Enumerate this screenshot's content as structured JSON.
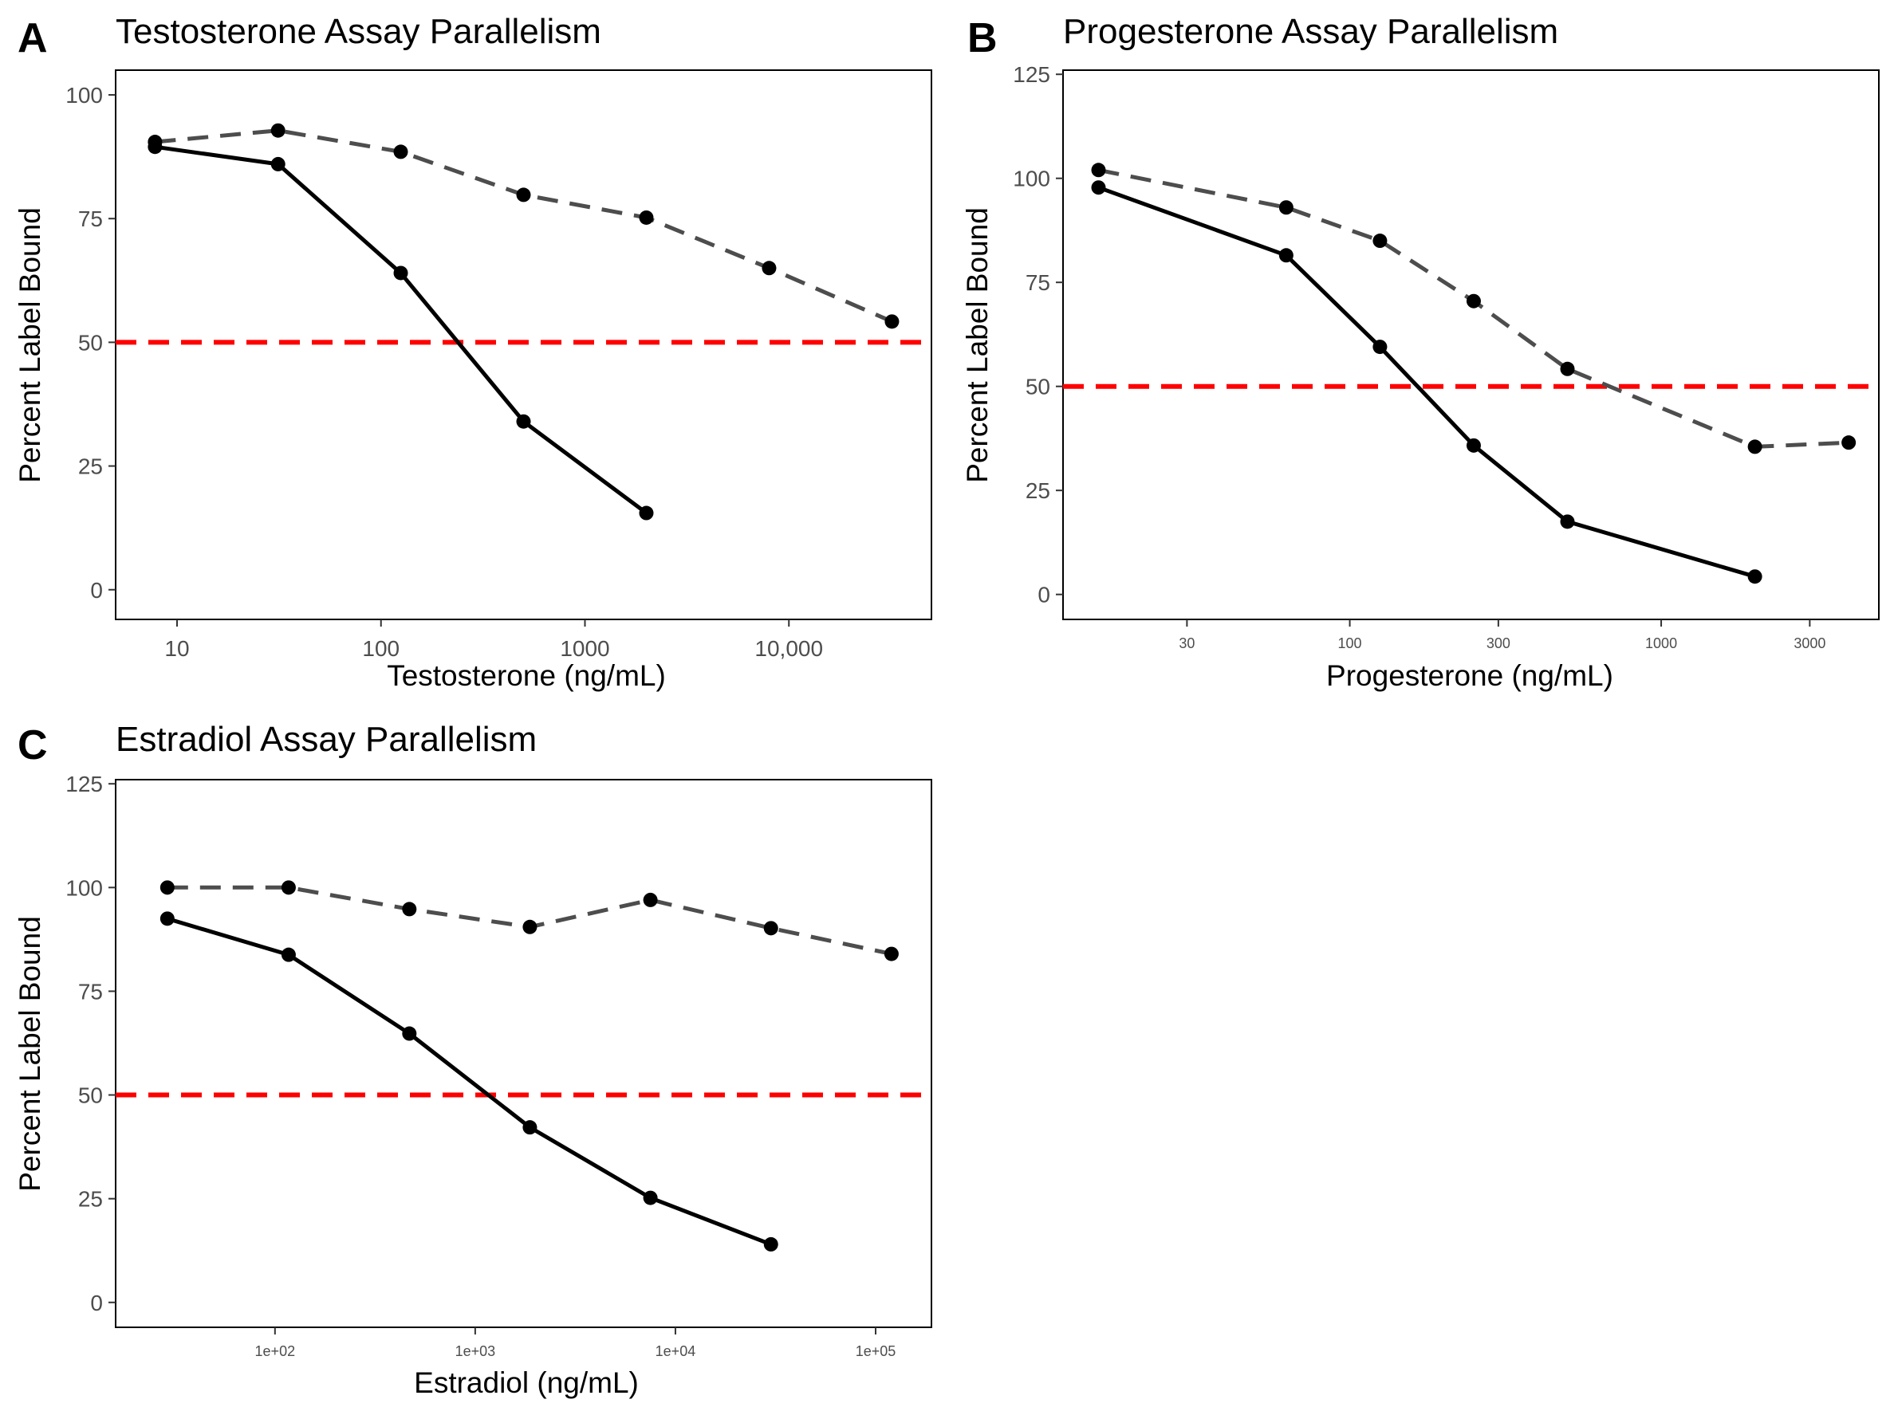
{
  "colors": {
    "solid_series": "#000000",
    "dashed_series": "#4d4d4d",
    "reference_line": "#ff0000",
    "tick_text": "#4d4d4d"
  },
  "chart_data": [
    {
      "panel": "A",
      "type": "line",
      "title": "Testosterone Assay Parallelism",
      "xlabel": "Testosterone (ng/mL)",
      "ylabel": "Percent Label Bound",
      "x_scale": "log10",
      "xlim": [
        5,
        50000
      ],
      "ylim": [
        -6,
        105
      ],
      "x_ticks": [
        10,
        100,
        1000,
        10000
      ],
      "x_tick_labels": [
        "10",
        "100",
        "1000",
        "10,000"
      ],
      "y_ticks": [
        0,
        25,
        50,
        75,
        100
      ],
      "y_tick_labels": [
        "0",
        "25",
        "50",
        "75",
        "100"
      ],
      "reference_line": {
        "y": 50
      },
      "grid": false,
      "legend": "none",
      "series": [
        {
          "style": "solid",
          "x": [
            7.8,
            31.3,
            125,
            500,
            2000
          ],
          "y": [
            89.5,
            86,
            64,
            34,
            15.5
          ]
        },
        {
          "style": "dashed",
          "x": [
            7.8,
            31.3,
            125,
            500,
            2000,
            8000,
            32000
          ],
          "y": [
            90.5,
            92.8,
            88.5,
            79.8,
            75.2,
            65,
            54.2
          ]
        }
      ]
    },
    {
      "panel": "B",
      "type": "line",
      "title": "Progesterone Assay Parallelism",
      "xlabel": "Progesterone (ng/mL)",
      "ylabel": "Percent Label Bound",
      "x_scale": "log10",
      "xlim": [
        12,
        5000
      ],
      "ylim": [
        -6,
        126
      ],
      "x_ticks": [
        30,
        100,
        300,
        1000,
        3000
      ],
      "x_tick_labels": [
        "30",
        "100",
        "300",
        "1000",
        "3000"
      ],
      "y_ticks": [
        0,
        25,
        50,
        75,
        100,
        125
      ],
      "y_tick_labels": [
        "0",
        "25",
        "50",
        "75",
        "100",
        "125"
      ],
      "reference_line": {
        "y": 50
      },
      "grid": false,
      "legend": "none",
      "series": [
        {
          "style": "solid",
          "x": [
            15.6,
            62.5,
            125,
            250,
            500,
            2000
          ],
          "y": [
            97.8,
            81.5,
            59.5,
            35.8,
            17.5,
            4.3
          ]
        },
        {
          "style": "dashed",
          "x": [
            15.6,
            62.5,
            125,
            250,
            500,
            2000,
            4000
          ],
          "y": [
            102,
            93,
            85,
            70.5,
            54.2,
            35.5,
            36.5
          ]
        }
      ]
    },
    {
      "panel": "C",
      "type": "line",
      "title": "Estradiol Assay Parallelism",
      "xlabel": "Estradiol (ng/mL)",
      "ylabel": "Percent Label Bound",
      "x_scale": "log10",
      "xlim": [
        16,
        190000
      ],
      "ylim": [
        -6,
        126
      ],
      "x_ticks": [
        100,
        1000,
        10000,
        100000
      ],
      "x_tick_labels": [
        "1e+02",
        "1e+03",
        "1e+04",
        "1e+05"
      ],
      "y_ticks": [
        0,
        25,
        50,
        75,
        100,
        125
      ],
      "y_tick_labels": [
        "0",
        "25",
        "50",
        "75",
        "100",
        "125"
      ],
      "reference_line": {
        "y": 50
      },
      "grid": false,
      "legend": "none",
      "series": [
        {
          "style": "solid",
          "x": [
            29,
            117,
            469,
            1875,
            7500,
            30000
          ],
          "y": [
            92.5,
            83.8,
            64.8,
            42.2,
            25.2,
            14
          ]
        },
        {
          "style": "dashed",
          "x": [
            29,
            117,
            469,
            1875,
            7500,
            30000,
            120000
          ],
          "y": [
            100,
            100,
            94.8,
            90.5,
            97,
            90.2,
            84
          ]
        }
      ]
    }
  ]
}
